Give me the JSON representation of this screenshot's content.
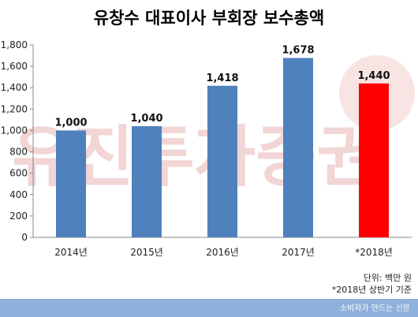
{
  "chart_data": {
    "type": "bar",
    "title": "유창수 대표이사 부회장 보수총액",
    "categories": [
      "2014년",
      "2015년",
      "2016년",
      "2017년",
      "*2018년"
    ],
    "values": [
      1000,
      1040,
      1418,
      1678,
      1440
    ],
    "value_labels": [
      "1,000",
      "1,040",
      "1,418",
      "1,678",
      "1,440"
    ],
    "bar_colors": [
      "#4f81bd",
      "#4f81bd",
      "#4f81bd",
      "#4f81bd",
      "#ff0000"
    ],
    "ylim": [
      0,
      1800
    ],
    "yticks": [
      0,
      200,
      400,
      600,
      800,
      1000,
      1200,
      1400,
      1600,
      1800
    ],
    "ytick_labels": [
      "0",
      "200",
      "400",
      "600",
      "800",
      "1,000",
      "1,200",
      "1,400",
      "1,600",
      "1,800"
    ],
    "grid": false,
    "xlabel": "",
    "ylabel": ""
  },
  "notes": {
    "unit": "단위: 백만 원",
    "basis": "*2018년 상반기 기준"
  },
  "footer": {
    "text": "소비자가 만드는 신문",
    "color": "#8fb0dc"
  },
  "watermark": {
    "text": "유진투자증권"
  }
}
